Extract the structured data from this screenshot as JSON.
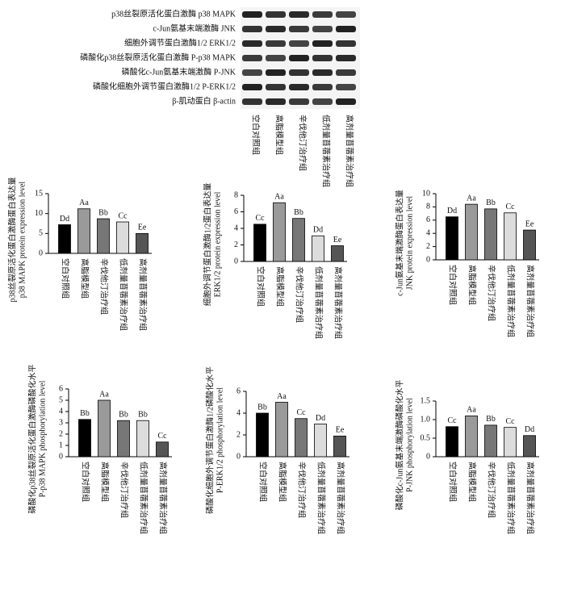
{
  "blot": {
    "rows": [
      "p38丝裂原活化蛋白激酶  p38 MAPK",
      "c-Jun氨基末端激酶  JNK",
      "细胞外调节蛋白激酶1/2  ERK1/2",
      "磷酸化p38丝裂原活化蛋白激酶  P-p38 MAPK",
      "磷酸化c-Jun氨基末端激酶  P-JNK",
      "磷酸化细胞外调节蛋白激酶1/2  P-ERK1/2",
      "β-肌动蛋白  β-actin"
    ],
    "columns": [
      "空白对照组",
      "高脂模型组",
      "辛伐他汀治疗组",
      "低剂量苜蓿素治疗组",
      "高剂量苜蓿素治疗组"
    ]
  },
  "chart_data": [
    {
      "type": "bar",
      "y_label_zh": "p38丝裂原活化蛋白激酶蛋白表达量",
      "y_label_en": "p38 MAPK protein expression level",
      "categories": [
        "空白对照组",
        "高脂模型组",
        "辛伐他汀治疗组",
        "低剂量苜蓿素治疗组",
        "高剂量苜蓿素治疗组"
      ],
      "values": [
        7.2,
        11.2,
        8.7,
        7.9,
        5.0
      ],
      "bar_labels": [
        "Dd",
        "Aa",
        "Bb",
        "Cc",
        "Ee"
      ],
      "colors": [
        "#000000",
        "#9a9a9a",
        "#777777",
        "#dcdcdc",
        "#555555"
      ],
      "ylim": [
        0,
        15
      ],
      "yticks": [
        0,
        5,
        10,
        15
      ]
    },
    {
      "type": "bar",
      "y_label_zh": "细胞外调节蛋白激酶1/2蛋白表达量",
      "y_label_en": "ERK1/2 protein expression level",
      "categories": [
        "空白对照组",
        "高脂模型组",
        "辛伐他汀治疗组",
        "低剂量苜蓿素治疗组",
        "高剂量苜蓿素治疗组"
      ],
      "values": [
        4.5,
        7.1,
        5.2,
        3.1,
        1.9
      ],
      "bar_labels": [
        "Cc",
        "Aa",
        "Bb",
        "Dd",
        "Ee"
      ],
      "colors": [
        "#000000",
        "#9a9a9a",
        "#777777",
        "#dcdcdc",
        "#555555"
      ],
      "ylim": [
        0,
        8
      ],
      "yticks": [
        0,
        2,
        4,
        6,
        8
      ]
    },
    {
      "type": "bar",
      "y_label_zh": "c-Jun氨基末端激酶蛋白表达量",
      "y_label_en": "JNK protein expression level",
      "categories": [
        "空白对照组",
        "高脂模型组",
        "辛伐他汀治疗组",
        "低剂量苜蓿素治疗组",
        "高剂量苜蓿素治疗组"
      ],
      "values": [
        6.5,
        8.4,
        7.7,
        7.1,
        4.5
      ],
      "bar_labels": [
        "Dd",
        "Aa",
        "Bb",
        "Cc",
        "Ee"
      ],
      "colors": [
        "#000000",
        "#9a9a9a",
        "#777777",
        "#dcdcdc",
        "#555555"
      ],
      "ylim": [
        0,
        10
      ],
      "yticks": [
        0,
        2,
        4,
        6,
        8,
        10
      ]
    },
    {
      "type": "bar",
      "y_label_zh": "磷酸化p38丝裂原活化蛋白激酶磷酸化水平",
      "y_label_en": "P-p38 MAPK phosphorylation level",
      "categories": [
        "空白对照组",
        "高脂模型组",
        "辛伐他汀治疗组",
        "低剂量苜蓿素治疗组",
        "高剂量苜蓿素治疗组"
      ],
      "values": [
        3.3,
        5.0,
        3.2,
        3.2,
        1.3
      ],
      "bar_labels": [
        "Bb",
        "Aa",
        "Bb",
        "Bb",
        "Cc"
      ],
      "colors": [
        "#000000",
        "#9a9a9a",
        "#777777",
        "#dcdcdc",
        "#555555"
      ],
      "ylim": [
        0,
        6
      ],
      "yticks": [
        0,
        1,
        2,
        3,
        4,
        5,
        6
      ]
    },
    {
      "type": "bar",
      "y_label_zh": "磷酸化细胞外调节蛋白激酶1/2磷酸化水平",
      "y_label_en": "P-ERK1/2 phosphorylation level",
      "categories": [
        "空白对照组",
        "高脂模型组",
        "辛伐他汀治疗组",
        "低剂量苜蓿素治疗组",
        "高剂量苜蓿素治疗组"
      ],
      "values": [
        4.0,
        5.0,
        3.5,
        3.0,
        1.9
      ],
      "bar_labels": [
        "Bb",
        "Aa",
        "Cc",
        "Dd",
        "Ee"
      ],
      "colors": [
        "#000000",
        "#9a9a9a",
        "#777777",
        "#dcdcdc",
        "#555555"
      ],
      "ylim": [
        0,
        6
      ],
      "yticks": [
        0,
        2,
        4,
        6
      ]
    },
    {
      "type": "bar",
      "y_label_zh": "磷酸化c-Jun氨基末端激酶磷酸化水平",
      "y_label_en": "P-JNK phosphorylation level",
      "categories": [
        "空白对照组",
        "高脂模型组",
        "辛伐他汀治疗组",
        "低剂量苜蓿素治疗组",
        "高剂量苜蓿素治疗组"
      ],
      "values": [
        0.81,
        1.1,
        0.85,
        0.79,
        0.57
      ],
      "bar_labels": [
        "Cc",
        "Aa",
        "Bb",
        "Cc",
        "Dd"
      ],
      "colors": [
        "#000000",
        "#9a9a9a",
        "#777777",
        "#dcdcdc",
        "#555555"
      ],
      "ylim": [
        0,
        1.5
      ],
      "yticks": [
        0,
        0.5,
        {
          "value": 1,
          "label": "1.0"
        },
        1.5
      ]
    }
  ]
}
